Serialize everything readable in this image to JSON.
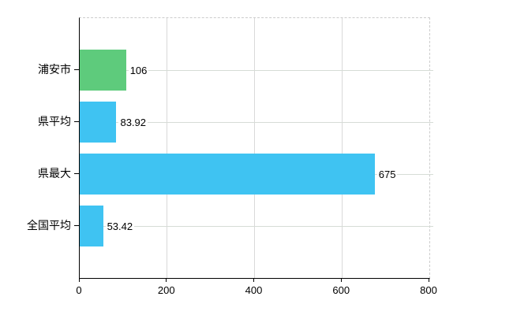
{
  "chart_data": {
    "type": "bar",
    "orientation": "horizontal",
    "categories": [
      "浦安市",
      "県平均",
      "県最大",
      "全国平均"
    ],
    "values": [
      106,
      83.92,
      675,
      53.42
    ],
    "value_labels": [
      "106",
      "83.92",
      "675",
      "53.42"
    ],
    "bar_colors": [
      "#5ecb7c",
      "#3fc3f2",
      "#3fc3f2",
      "#3fc3f2"
    ],
    "xlim": [
      0,
      800
    ],
    "x_ticks": [
      0,
      200,
      400,
      600,
      800
    ],
    "x_tick_labels": [
      "0",
      "200",
      "400",
      "600",
      "800"
    ],
    "grid": true,
    "legend": false,
    "title": "",
    "colors": {
      "axis": "#000000",
      "grid": "#d9d9d9",
      "frame_dashed": "#cccccc",
      "text": "#000000",
      "background": "#ffffff"
    }
  }
}
